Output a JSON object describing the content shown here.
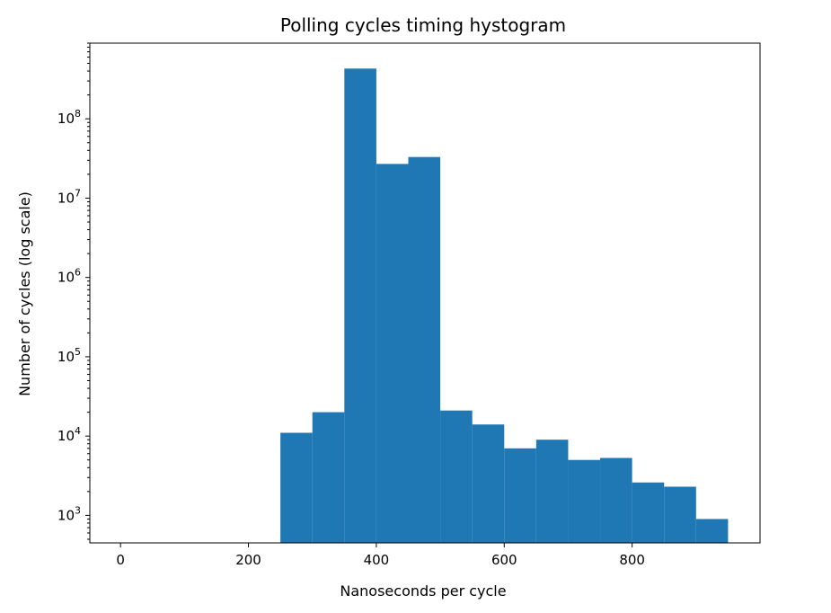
{
  "chart_data": {
    "type": "bar",
    "title": "Polling cycles timing hystogram",
    "xlabel": "Nanoseconds per cycle",
    "ylabel": "Number of cycles (log scale)",
    "yscale": "log",
    "xlim": [
      -48,
      1000
    ],
    "ylim": [
      450,
      900000000
    ],
    "xticks": [
      0,
      200,
      400,
      600,
      800
    ],
    "yticks": [
      {
        "value": 1000,
        "base": "10",
        "exp": "3"
      },
      {
        "value": 10000,
        "base": "10",
        "exp": "4"
      },
      {
        "value": 100000,
        "base": "10",
        "exp": "5"
      },
      {
        "value": 1000000,
        "base": "10",
        "exp": "6"
      },
      {
        "value": 10000000,
        "base": "10",
        "exp": "7"
      },
      {
        "value": 100000000,
        "base": "10",
        "exp": "8"
      }
    ],
    "bins": [
      {
        "x0": 250,
        "x1": 300,
        "value": 11000
      },
      {
        "x0": 300,
        "x1": 350,
        "value": 20000
      },
      {
        "x0": 350,
        "x1": 400,
        "value": 430000000
      },
      {
        "x0": 400,
        "x1": 450,
        "value": 27000000
      },
      {
        "x0": 450,
        "x1": 500,
        "value": 33000000
      },
      {
        "x0": 500,
        "x1": 550,
        "value": 21000
      },
      {
        "x0": 550,
        "x1": 600,
        "value": 14000
      },
      {
        "x0": 600,
        "x1": 650,
        "value": 7000
      },
      {
        "x0": 650,
        "x1": 700,
        "value": 9000
      },
      {
        "x0": 700,
        "x1": 750,
        "value": 5000
      },
      {
        "x0": 750,
        "x1": 800,
        "value": 5300
      },
      {
        "x0": 800,
        "x1": 850,
        "value": 2600
      },
      {
        "x0": 850,
        "x1": 900,
        "value": 2300
      },
      {
        "x0": 900,
        "x1": 950,
        "value": 900
      }
    ],
    "bar_color": "#1f77b4",
    "grid": false
  }
}
